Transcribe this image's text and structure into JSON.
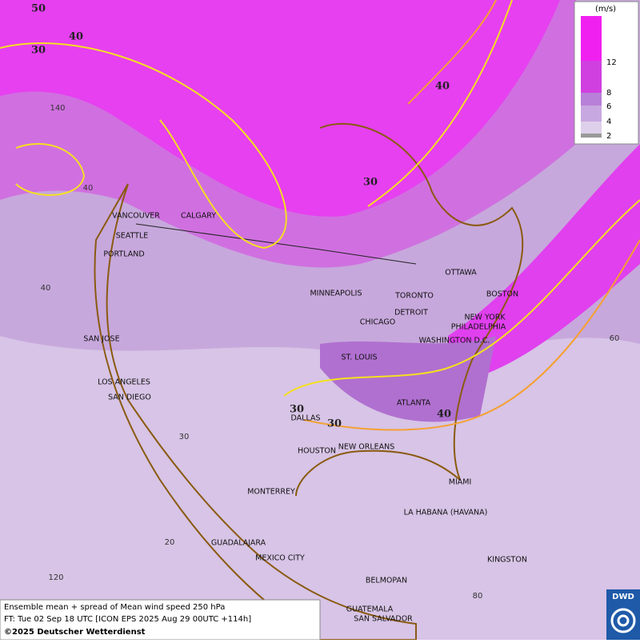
{
  "legend": {
    "unit": "(m/s)",
    "levels": [
      "12",
      "8",
      "6",
      "4",
      "2"
    ]
  },
  "cities": [
    "VANCOUVER",
    "CALGARY",
    "SEATTLE",
    "PORTLAND",
    "MINNEAPOLIS",
    "OTTAWA",
    "TORONTO",
    "BOSTON",
    "DETROIT",
    "CHICAGO",
    "NEW YORK",
    "PHILADELPHIA",
    "WASHINGTON D.C.",
    "SAN JOSE",
    "ST. LOUIS",
    "LOS ANGELES",
    "SAN DIEGO",
    "ATLANTA",
    "DALLAS",
    "HOUSTON",
    "NEW ORLEANS",
    "MIAMI",
    "MONTERREY",
    "LA HABANA (HAVANA)",
    "GUADALAJARA",
    "MEXICO CITY",
    "KINGSTON",
    "BELMOPAN",
    "GUATEMALA",
    "SAN SALVADOR"
  ],
  "contour_labels": [
    "50",
    "40",
    "30",
    "40",
    "30",
    "30",
    "30",
    "40"
  ],
  "grid_labels": [
    "140",
    "40",
    "40",
    "60",
    "30",
    "20",
    "120",
    "80"
  ],
  "caption": [
    "Ensemble mean + spread of Mean wind speed 250 hPa",
    "FT: Tue 02 Sep 18 UTC [ICON EPS 2025 Aug 29 00UTC +114h]",
    "©2025 Deutscher Wetterdienst"
  ],
  "logo": "DWD"
}
